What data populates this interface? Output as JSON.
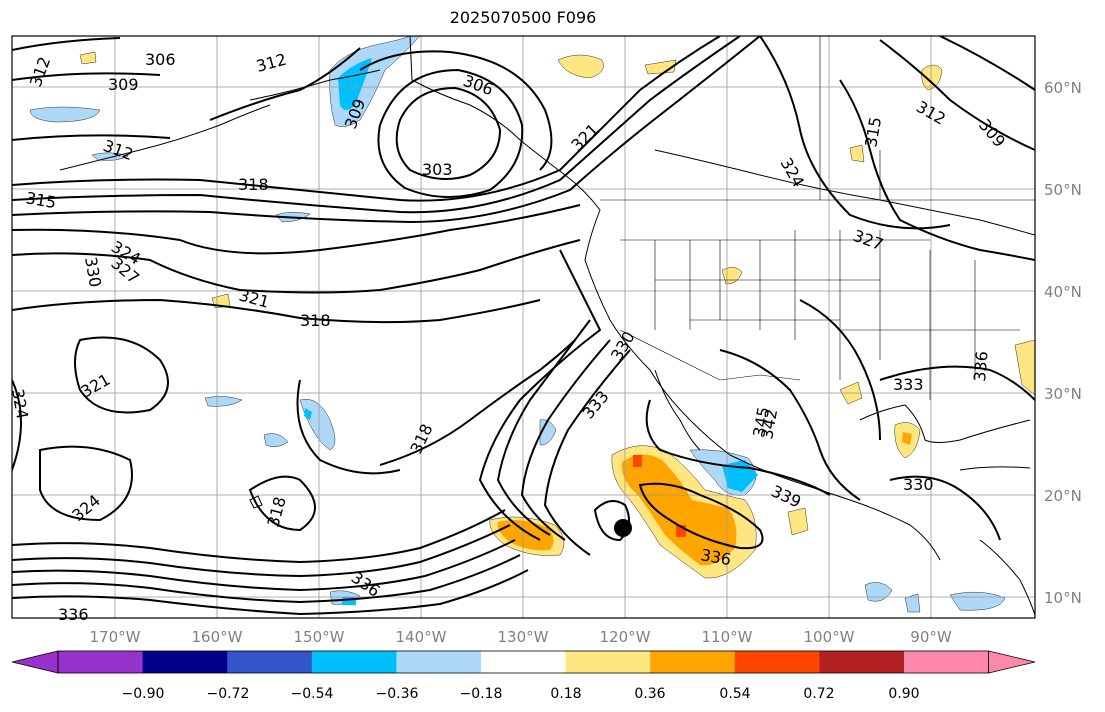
{
  "title": "2025070500 F096",
  "lat_labels": [
    "60°N",
    "50°N",
    "40°N",
    "30°N",
    "20°N",
    "10°N"
  ],
  "lon_labels": [
    "170°W",
    "160°W",
    "150°W",
    "140°W",
    "130°W",
    "120°W",
    "110°W",
    "100°W",
    "90°W"
  ],
  "colorbar": {
    "ticks": [
      "−0.90",
      "−0.72",
      "−0.54",
      "−0.36",
      "−0.18",
      "0.18",
      "0.36",
      "0.54",
      "0.72",
      "0.90"
    ],
    "colors": [
      "#9932cc",
      "#00008b",
      "#3355cc",
      "#00bfff",
      "#add8f8",
      "#ffffff",
      "#ffe680",
      "#ffa500",
      "#ff4500",
      "#b22222",
      "#ff88aa"
    ]
  },
  "contour_labels": [
    "303",
    "306",
    "309",
    "312",
    "315",
    "318",
    "321",
    "324",
    "327",
    "330",
    "333",
    "336",
    "339",
    "342",
    "345"
  ],
  "marker": "storm-center"
}
